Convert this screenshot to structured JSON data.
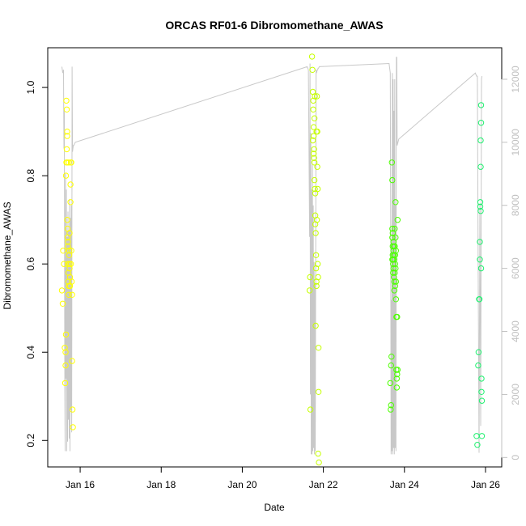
{
  "chart_data": {
    "type": "scatter",
    "title": "ORCAS RF01-6 Dibromomethane_AWAS",
    "xlabel": "Date",
    "ylabel": "Dibromomethane_AWAS",
    "x_ticks": [
      "Jan 16",
      "Jan 18",
      "Jan 20",
      "Jan 22",
      "Jan 24",
      "Jan 26"
    ],
    "x_tick_values": [
      16,
      18,
      20,
      22,
      24,
      26
    ],
    "xlim": [
      15.2,
      26.4
    ],
    "ylim": [
      0.14,
      1.09
    ],
    "y_ticks": [
      0.2,
      0.4,
      0.6,
      0.8,
      1.0
    ],
    "y_tick_labels": [
      "0.2",
      "0.4",
      "0.6",
      "0.8",
      "1.0"
    ],
    "y2_ticks": [
      0,
      2000,
      4000,
      6000,
      8000,
      10000,
      12000
    ],
    "y2_tick_labels": [
      "0",
      "2000",
      "4000",
      "6000",
      "8000",
      "10000",
      "12000"
    ],
    "y2lim": [
      -300,
      13000
    ],
    "colors": {
      "line": "#c8c8c8",
      "axis": "#000000",
      "axis_right": "#c0c0c0"
    },
    "series": [
      {
        "color": "#ffff00",
        "points": [
          [
            15.55,
            0.54
          ],
          [
            15.57,
            0.51
          ],
          [
            15.58,
            0.63
          ],
          [
            15.6,
            0.6
          ],
          [
            15.62,
            0.41
          ],
          [
            15.63,
            0.33
          ],
          [
            15.64,
            0.37
          ],
          [
            15.64,
            0.4
          ],
          [
            15.65,
            0.44
          ],
          [
            15.65,
            0.8
          ],
          [
            15.66,
            0.83
          ],
          [
            15.66,
            0.97
          ],
          [
            15.67,
            0.95
          ],
          [
            15.67,
            0.86
          ],
          [
            15.68,
            0.9
          ],
          [
            15.68,
            0.89
          ],
          [
            15.68,
            0.7
          ],
          [
            15.69,
            0.66
          ],
          [
            15.69,
            0.68
          ],
          [
            15.7,
            0.64
          ],
          [
            15.7,
            0.65
          ],
          [
            15.7,
            0.6
          ],
          [
            15.71,
            0.58
          ],
          [
            15.71,
            0.56
          ],
          [
            15.72,
            0.55
          ],
          [
            15.72,
            0.53
          ],
          [
            15.73,
            0.63
          ],
          [
            15.73,
            0.62
          ],
          [
            15.74,
            0.6
          ],
          [
            15.74,
            0.59
          ],
          [
            15.75,
            0.57
          ],
          [
            15.75,
            0.55
          ],
          [
            15.76,
            0.78
          ],
          [
            15.76,
            0.74
          ],
          [
            15.77,
            0.83
          ],
          [
            15.78,
            0.83
          ],
          [
            15.78,
            0.63
          ],
          [
            15.79,
            0.56
          ],
          [
            15.8,
            0.53
          ],
          [
            15.8,
            0.38
          ],
          [
            15.81,
            0.27
          ],
          [
            15.82,
            0.23
          ],
          [
            15.68,
            0.83
          ],
          [
            15.72,
            0.83
          ],
          [
            15.74,
            0.67
          ],
          [
            15.77,
            0.6
          ]
        ]
      },
      {
        "color": "#c6ff00",
        "points": [
          [
            21.67,
            0.57
          ],
          [
            21.66,
            0.54
          ],
          [
            21.68,
            0.27
          ],
          [
            21.72,
            1.07
          ],
          [
            21.73,
            1.04
          ],
          [
            21.74,
            0.99
          ],
          [
            21.75,
            0.97
          ],
          [
            21.75,
            0.95
          ],
          [
            21.76,
            0.91
          ],
          [
            21.76,
            0.89
          ],
          [
            21.77,
            0.86
          ],
          [
            21.77,
            0.84
          ],
          [
            21.78,
            0.83
          ],
          [
            21.78,
            0.79
          ],
          [
            21.79,
            0.77
          ],
          [
            21.8,
            0.71
          ],
          [
            21.8,
            0.69
          ],
          [
            21.81,
            0.67
          ],
          [
            21.81,
            0.46
          ],
          [
            21.82,
            0.62
          ],
          [
            21.82,
            0.59
          ],
          [
            21.83,
            0.56
          ],
          [
            21.83,
            0.55
          ],
          [
            21.84,
            0.98
          ],
          [
            21.85,
            0.9
          ],
          [
            21.85,
            0.82
          ],
          [
            21.86,
            0.77
          ],
          [
            21.86,
            0.6
          ],
          [
            21.87,
            0.57
          ],
          [
            21.88,
            0.41
          ],
          [
            21.88,
            0.31
          ],
          [
            21.87,
            0.17
          ],
          [
            21.89,
            0.15
          ],
          [
            21.74,
            0.88
          ],
          [
            21.76,
            0.85
          ],
          [
            21.79,
            0.98
          ],
          [
            21.8,
            0.76
          ],
          [
            21.83,
            0.9
          ],
          [
            21.84,
            0.7
          ],
          [
            21.78,
            0.93
          ]
        ]
      },
      {
        "color": "#4cff00",
        "points": [
          [
            23.65,
            0.33
          ],
          [
            23.66,
            0.27
          ],
          [
            23.67,
            0.28
          ],
          [
            23.67,
            0.37
          ],
          [
            23.68,
            0.39
          ],
          [
            23.69,
            0.83
          ],
          [
            23.7,
            0.79
          ],
          [
            23.7,
            0.68
          ],
          [
            23.7,
            0.66
          ],
          [
            23.71,
            0.64
          ],
          [
            23.71,
            0.62
          ],
          [
            23.72,
            0.61
          ],
          [
            23.72,
            0.6
          ],
          [
            23.73,
            0.59
          ],
          [
            23.73,
            0.63
          ],
          [
            23.74,
            0.64
          ],
          [
            23.74,
            0.57
          ],
          [
            23.75,
            0.56
          ],
          [
            23.75,
            0.54
          ],
          [
            23.76,
            0.58
          ],
          [
            23.76,
            0.68
          ],
          [
            23.77,
            0.62
          ],
          [
            23.77,
            0.6
          ],
          [
            23.78,
            0.74
          ],
          [
            23.78,
            0.66
          ],
          [
            23.79,
            0.63
          ],
          [
            23.79,
            0.56
          ],
          [
            23.8,
            0.48
          ],
          [
            23.8,
            0.36
          ],
          [
            23.81,
            0.34
          ],
          [
            23.81,
            0.32
          ],
          [
            23.82,
            0.35
          ],
          [
            23.82,
            0.48
          ],
          [
            23.83,
            0.7
          ],
          [
            23.83,
            0.36
          ],
          [
            23.71,
            0.67
          ],
          [
            23.73,
            0.65
          ],
          [
            23.75,
            0.61
          ],
          [
            23.77,
            0.55
          ],
          [
            23.79,
            0.52
          ],
          [
            23.72,
            0.58
          ],
          [
            23.74,
            0.62
          ],
          [
            23.76,
            0.64
          ],
          [
            23.78,
            0.59
          ],
          [
            23.7,
            0.61
          ]
        ]
      },
      {
        "color": "#1ef06e",
        "points": [
          [
            25.78,
            0.21
          ],
          [
            25.8,
            0.19
          ],
          [
            25.82,
            0.37
          ],
          [
            25.83,
            0.4
          ],
          [
            25.84,
            0.52
          ],
          [
            25.85,
            0.52
          ],
          [
            25.86,
            0.61
          ],
          [
            25.86,
            0.65
          ],
          [
            25.87,
            0.73
          ],
          [
            25.87,
            0.74
          ],
          [
            25.88,
            0.72
          ],
          [
            25.88,
            0.82
          ],
          [
            25.88,
            0.88
          ],
          [
            25.89,
            0.92
          ],
          [
            25.89,
            0.96
          ],
          [
            25.89,
            0.59
          ],
          [
            25.9,
            0.34
          ],
          [
            25.9,
            0.31
          ],
          [
            25.91,
            0.29
          ],
          [
            25.91,
            0.21
          ]
        ]
      }
    ],
    "line_y2": {
      "x": [
        15.55,
        15.57,
        15.59,
        15.6,
        15.61,
        15.62,
        15.63,
        15.64,
        15.65,
        15.66,
        15.67,
        15.68,
        15.69,
        15.7,
        15.71,
        15.72,
        15.73,
        15.74,
        15.75,
        15.76,
        15.77,
        15.78,
        15.79,
        15.8,
        15.81,
        15.82,
        15.83,
        15.84,
        15.86,
        15.88,
        21.6,
        21.63,
        21.66,
        21.67,
        21.68,
        21.69,
        21.7,
        21.71,
        21.72,
        21.73,
        21.74,
        21.75,
        21.76,
        21.77,
        21.78,
        21.79,
        21.8,
        21.81,
        21.82,
        21.83,
        21.84,
        21.85,
        21.86,
        21.87,
        21.88,
        21.9,
        23.62,
        23.64,
        23.65,
        23.66,
        23.67,
        23.68,
        23.69,
        23.7,
        23.71,
        23.72,
        23.73,
        23.74,
        23.75,
        23.76,
        23.77,
        23.78,
        23.79,
        23.8,
        23.81,
        23.82,
        23.84,
        23.86,
        25.75,
        25.78,
        25.8,
        25.82,
        25.84,
        25.86,
        25.88,
        25.9,
        25.91
      ],
      "y": [
        12400,
        12200,
        12300,
        9800,
        11000,
        3000,
        200,
        9000,
        2500,
        8500,
        200,
        7000,
        500,
        7800,
        1200,
        7200,
        600,
        8200,
        200,
        7600,
        1500,
        8000,
        800,
        12400,
        9700,
        9800,
        9900,
        9900,
        9950,
        10000,
        12400,
        12300,
        7000,
        12500,
        2000,
        10300,
        100,
        8500,
        100,
        9300,
        200,
        8000,
        300,
        6200,
        100,
        5500,
        200,
        6000,
        12300,
        12200,
        12250,
        12300,
        12300,
        12350,
        12350,
        12400,
        12500,
        12300,
        12200,
        7500,
        100,
        5000,
        200,
        12200,
        100,
        12000,
        300,
        11000,
        100,
        12000,
        300,
        8000,
        200,
        12700,
        12700,
        9900,
        10000,
        10100,
        12200,
        12100,
        12100,
        6000,
        150,
        8000,
        1000,
        12000,
        12100
      ]
    }
  }
}
